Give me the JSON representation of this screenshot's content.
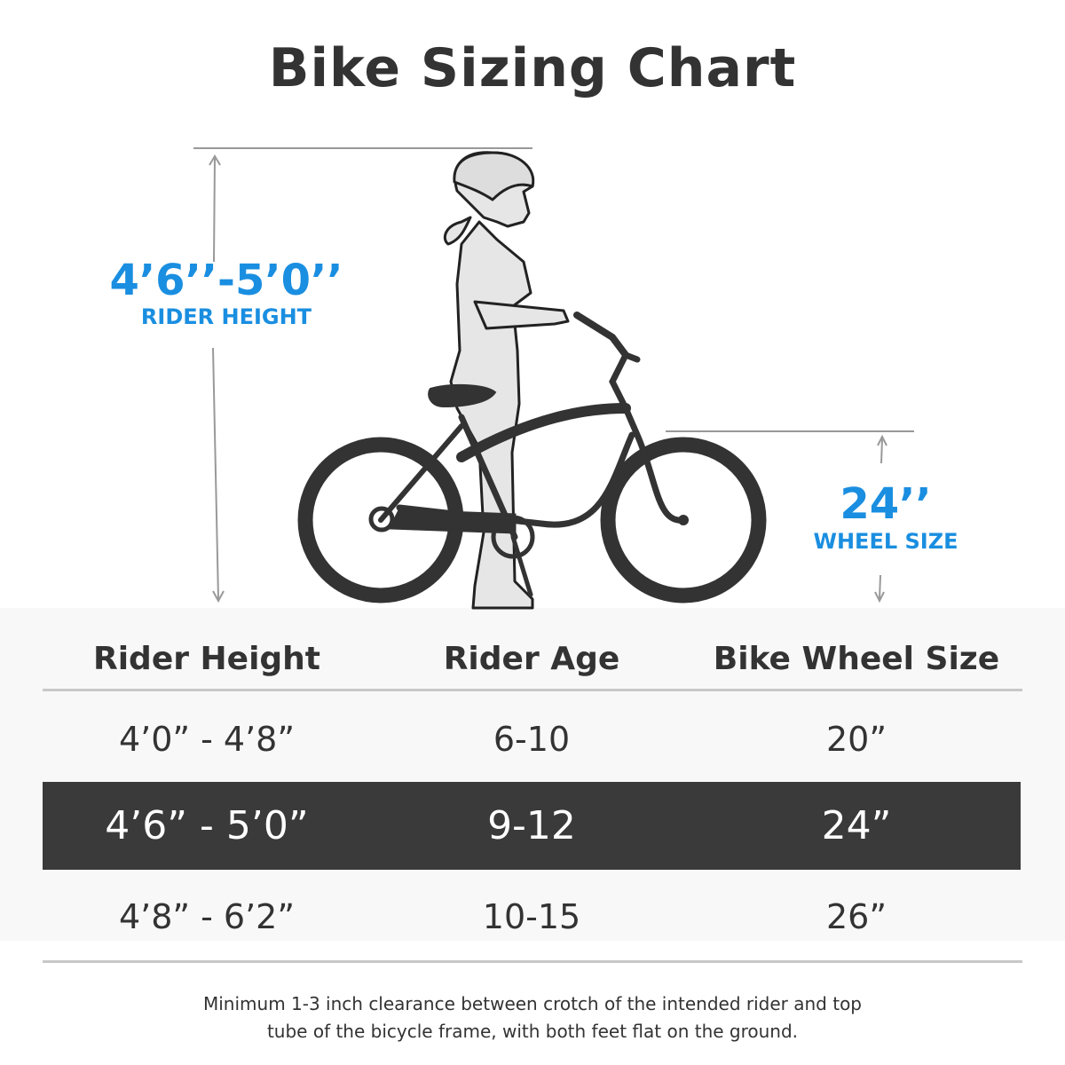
{
  "title": "Bike Sizing Chart",
  "illustration": {
    "rider_height_value": "4’6’’-5’0’’",
    "rider_height_label": "RIDER HEIGHT",
    "wheel_size_value": "24’’",
    "wheel_size_label": "WHEEL SIZE",
    "accent_color": "#1a8ee0"
  },
  "table": {
    "headers": [
      "Rider Height",
      "Rider Age",
      "Bike Wheel Size"
    ],
    "rows": [
      {
        "height": "4’0”  - 4’8”",
        "age": "6-10",
        "wheel": "20”",
        "highlighted": false
      },
      {
        "height": "4’6”  - 5’0”",
        "age": "9-12",
        "wheel": "24”",
        "highlighted": true
      },
      {
        "height": "4’8”  - 6’2”",
        "age": "10-15",
        "wheel": "26”",
        "highlighted": false
      }
    ],
    "highlight_color": "#3a3a3a"
  },
  "note": {
    "line1": "Minimum 1-3 inch clearance between crotch of the intended rider and top",
    "line2": "tube of the bicycle frame, with both feet flat on the ground."
  }
}
